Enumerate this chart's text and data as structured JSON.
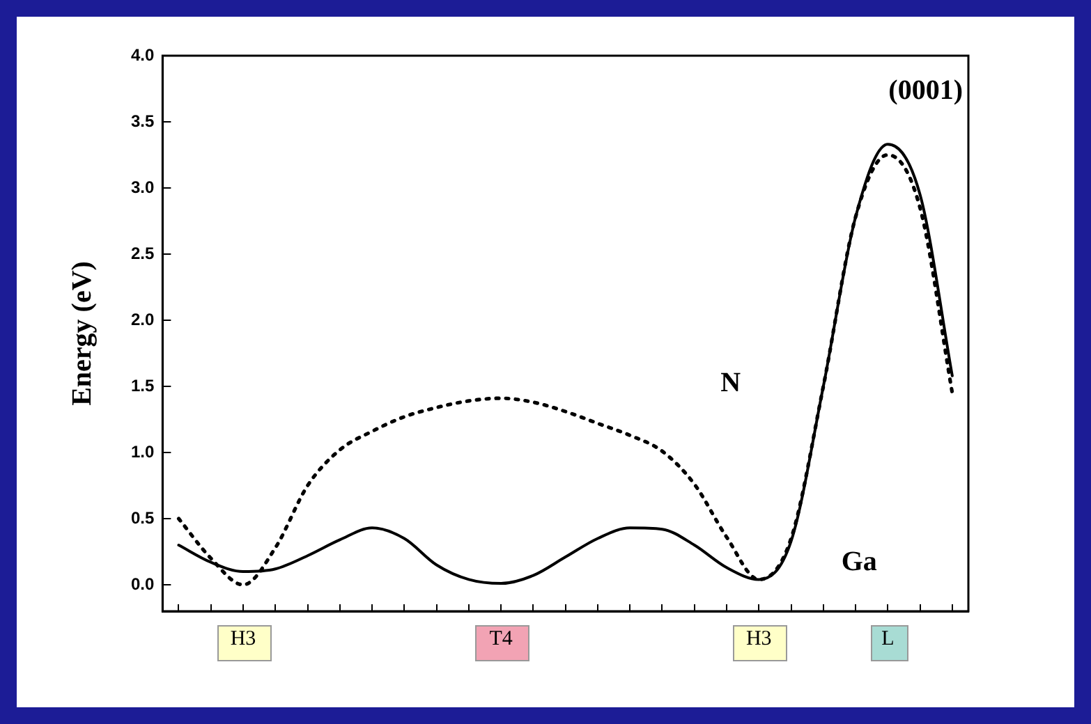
{
  "chart_data": {
    "type": "line",
    "ylabel": "Energy (eV)",
    "marker": "none",
    "grid": false,
    "legend": false,
    "ylim": [
      -0.2,
      4.0
    ],
    "categories": [
      null,
      null,
      "H3",
      null,
      null,
      null,
      null,
      null,
      null,
      null,
      "T4",
      null,
      null,
      null,
      null,
      null,
      null,
      null,
      "H3",
      null,
      null,
      null,
      "L",
      null,
      null
    ],
    "yticks": [
      {
        "value": 0,
        "label": "0.0"
      },
      0.5,
      {
        "value": 1,
        "label": "1.0"
      },
      1.5,
      {
        "value": 2,
        "label": "2.0"
      },
      2.5,
      {
        "value": 3,
        "label": "3.0"
      },
      3.5,
      {
        "value": 4,
        "label": "4.0"
      }
    ],
    "series": [
      {
        "name": "Ga",
        "color": "#000000",
        "line_style": "solid",
        "values": [
          0.3,
          0.17,
          0.1,
          0.12,
          0.22,
          0.34,
          0.43,
          0.35,
          0.15,
          0.04,
          0.01,
          0.07,
          0.21,
          0.35,
          0.43,
          0.42,
          0.3,
          0.13,
          0.04,
          0.33,
          1.5,
          2.78,
          3.33,
          2.95,
          1.58
        ]
      },
      {
        "name": "N",
        "color": "#000000",
        "line_style": "dotted",
        "values": [
          0.5,
          0.2,
          0.0,
          0.28,
          0.75,
          1.02,
          1.16,
          1.27,
          1.34,
          1.39,
          1.41,
          1.38,
          1.31,
          1.22,
          1.13,
          1.01,
          0.76,
          0.36,
          0.04,
          0.35,
          1.5,
          2.78,
          3.25,
          2.85,
          1.45
        ]
      }
    ],
    "annotations": [
      "(0001)"
    ]
  }
}
